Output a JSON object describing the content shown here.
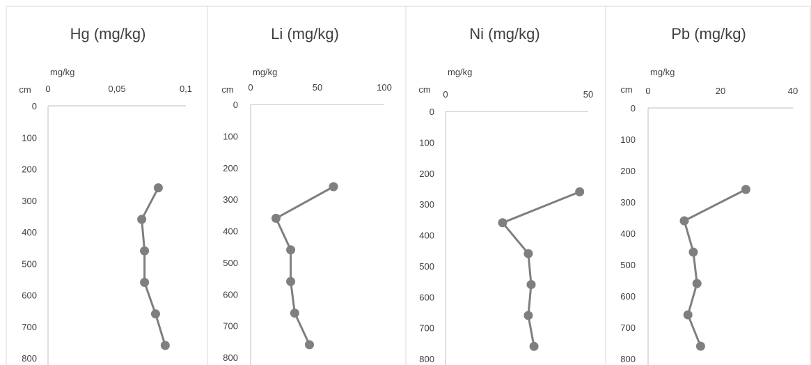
{
  "chart_data": [
    {
      "type": "line",
      "title": "Hg (mg/kg)",
      "x_unit": "mg/kg",
      "y_unit": "cm",
      "xlim": [
        0,
        0.1
      ],
      "x_ticks": [
        "0",
        "0,05",
        "0,1"
      ],
      "ylim": [
        0,
        800
      ],
      "y_ticks": [
        "0",
        "100",
        "200",
        "300",
        "400",
        "500",
        "600",
        "700",
        "800"
      ],
      "y_inverted": true,
      "grid": false,
      "color": "#7f7f7f",
      "series": [
        {
          "depth": [
            260,
            360,
            460,
            560,
            660,
            760
          ],
          "values": [
            0.08,
            0.068,
            0.07,
            0.07,
            0.078,
            0.085
          ]
        }
      ]
    },
    {
      "type": "line",
      "title": "Li (mg/kg)",
      "x_unit": "mg/kg",
      "y_unit": "cm",
      "xlim": [
        0,
        100
      ],
      "x_ticks": [
        "0",
        "50",
        "100"
      ],
      "ylim": [
        0,
        800
      ],
      "y_ticks": [
        "0",
        "100",
        "200",
        "300",
        "400",
        "500",
        "600",
        "700",
        "800"
      ],
      "y_inverted": true,
      "grid": false,
      "color": "#7f7f7f",
      "series": [
        {
          "depth": [
            260,
            360,
            460,
            560,
            660,
            760
          ],
          "values": [
            62,
            19,
            30,
            30,
            33,
            44
          ]
        }
      ]
    },
    {
      "type": "line",
      "title": "Ni (mg/kg)",
      "x_unit": "mg/kg",
      "y_unit": "cm",
      "xlim": [
        0,
        50
      ],
      "x_ticks": [
        "0",
        "50"
      ],
      "ylim": [
        0,
        800
      ],
      "y_ticks": [
        "0",
        "100",
        "200",
        "300",
        "400",
        "500",
        "600",
        "700",
        "800"
      ],
      "y_inverted": true,
      "grid": false,
      "color": "#7f7f7f",
      "series": [
        {
          "depth": [
            260,
            360,
            460,
            560,
            660,
            760
          ],
          "values": [
            47,
            20,
            29,
            30,
            29,
            31
          ]
        }
      ]
    },
    {
      "type": "line",
      "title": "Pb (mg/kg)",
      "x_unit": "mg/kg",
      "y_unit": "cm",
      "xlim": [
        0,
        40
      ],
      "x_ticks": [
        "0",
        "20",
        "40"
      ],
      "ylim": [
        0,
        800
      ],
      "y_ticks": [
        "0",
        "100",
        "200",
        "300",
        "400",
        "500",
        "600",
        "700",
        "800"
      ],
      "y_inverted": true,
      "grid": false,
      "color": "#7f7f7f",
      "series": [
        {
          "depth": [
            260,
            360,
            460,
            560,
            660,
            760
          ],
          "values": [
            27,
            10,
            12.5,
            13.5,
            11,
            14.5
          ]
        }
      ]
    }
  ]
}
